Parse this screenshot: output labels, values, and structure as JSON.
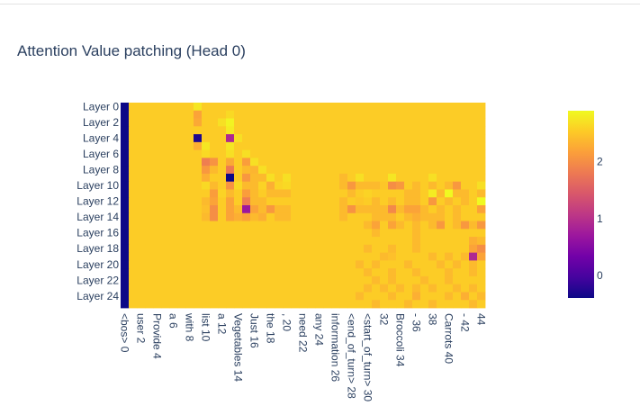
{
  "chart_data": {
    "type": "heatmap",
    "title": "Attention Value patching (Head 0)",
    "xlabel": "",
    "ylabel": "",
    "y_categories": [
      "Layer 0",
      "Layer 1",
      "Layer 2",
      "Layer 3",
      "Layer 4",
      "Layer 5",
      "Layer 6",
      "Layer 7",
      "Layer 8",
      "Layer 9",
      "Layer 10",
      "Layer 11",
      "Layer 12",
      "Layer 13",
      "Layer 14",
      "Layer 15",
      "Layer 16",
      "Layer 17",
      "Layer 18",
      "Layer 19",
      "Layer 20",
      "Layer 21",
      "Layer 22",
      "Layer 23",
      "Layer 24",
      "Layer 25"
    ],
    "y_tick_labels": [
      "Layer 0",
      "Layer 2",
      "Layer 4",
      "Layer 6",
      "Layer 8",
      "Layer 10",
      "Layer 12",
      "Layer 14",
      "Layer 16",
      "Layer 18",
      "Layer 20",
      "Layer 22",
      "Layer 24"
    ],
    "x_tick_labels": [
      "<bos> 0",
      "user 2",
      "Provide 4",
      "a 6",
      "with 8",
      "list 10",
      "a 12",
      "Vegetables 14",
      "Just 16",
      "the 18",
      ", 20",
      "need 22",
      "any 24",
      "information 26",
      "<end_of_turn> 28",
      "<start_of_turn> 30",
      "32",
      "Broccoli 34",
      "- 36",
      "38",
      "Carrots 40",
      "- 42",
      "44"
    ],
    "n_positions": 45,
    "colorscale": [
      "#0d0887",
      "#46039f",
      "#7201a8",
      "#9c179e",
      "#bd3786",
      "#d8576b",
      "#ed7953",
      "#fb9f3a",
      "#fdca26",
      "#f0f921"
    ],
    "zmin": -0.4,
    "zmax": 2.9,
    "colorbar_ticks": [
      0,
      1,
      2
    ],
    "baseline_value": 2.55,
    "column0_value": -0.4,
    "cells": [
      {
        "layer": 0,
        "pos": 9,
        "v": 2.75
      },
      {
        "layer": 1,
        "pos": 9,
        "v": 2.2
      },
      {
        "layer": 1,
        "pos": 13,
        "v": 2.65
      },
      {
        "layer": 2,
        "pos": 9,
        "v": 2.25
      },
      {
        "layer": 2,
        "pos": 12,
        "v": 2.7
      },
      {
        "layer": 2,
        "pos": 13,
        "v": 2.85
      },
      {
        "layer": 3,
        "pos": 13,
        "v": 2.8
      },
      {
        "layer": 4,
        "pos": 9,
        "v": -0.3
      },
      {
        "layer": 4,
        "pos": 13,
        "v": 0.9
      },
      {
        "layer": 4,
        "pos": 14,
        "v": 2.7
      },
      {
        "layer": 5,
        "pos": 9,
        "v": 2.3
      },
      {
        "layer": 5,
        "pos": 10,
        "v": 2.75
      },
      {
        "layer": 5,
        "pos": 13,
        "v": 2.75
      },
      {
        "layer": 6,
        "pos": 10,
        "v": 2.65
      },
      {
        "layer": 6,
        "pos": 13,
        "v": 2.7
      },
      {
        "layer": 6,
        "pos": 15,
        "v": 2.7
      },
      {
        "layer": 7,
        "pos": 10,
        "v": 1.85
      },
      {
        "layer": 7,
        "pos": 11,
        "v": 2.05
      },
      {
        "layer": 7,
        "pos": 13,
        "v": 2.25
      },
      {
        "layer": 7,
        "pos": 15,
        "v": 2.15
      },
      {
        "layer": 7,
        "pos": 16,
        "v": 2.7
      },
      {
        "layer": 8,
        "pos": 10,
        "v": 2.1
      },
      {
        "layer": 8,
        "pos": 11,
        "v": 2.4
      },
      {
        "layer": 8,
        "pos": 13,
        "v": 1.8
      },
      {
        "layer": 8,
        "pos": 15,
        "v": 2.4
      },
      {
        "layer": 8,
        "pos": 16,
        "v": 2.35
      },
      {
        "layer": 8,
        "pos": 17,
        "v": 2.7
      },
      {
        "layer": 9,
        "pos": 10,
        "v": 2.3
      },
      {
        "layer": 9,
        "pos": 11,
        "v": 2.55
      },
      {
        "layer": 9,
        "pos": 13,
        "v": -0.4
      },
      {
        "layer": 9,
        "pos": 15,
        "v": 2.1
      },
      {
        "layer": 9,
        "pos": 16,
        "v": 2.4
      },
      {
        "layer": 9,
        "pos": 17,
        "v": 2.4
      },
      {
        "layer": 9,
        "pos": 18,
        "v": 2.7
      },
      {
        "layer": 9,
        "pos": 20,
        "v": 2.7
      },
      {
        "layer": 9,
        "pos": 27,
        "v": 2.4
      },
      {
        "layer": 9,
        "pos": 29,
        "v": 2.7
      },
      {
        "layer": 9,
        "pos": 33,
        "v": 2.75
      },
      {
        "layer": 9,
        "pos": 38,
        "v": 2.7
      },
      {
        "layer": 10,
        "pos": 10,
        "v": 2.65
      },
      {
        "layer": 10,
        "pos": 11,
        "v": 2.4
      },
      {
        "layer": 10,
        "pos": 13,
        "v": 2.05
      },
      {
        "layer": 10,
        "pos": 14,
        "v": 2.65
      },
      {
        "layer": 10,
        "pos": 15,
        "v": 2.4
      },
      {
        "layer": 10,
        "pos": 16,
        "v": 2.4
      },
      {
        "layer": 10,
        "pos": 17,
        "v": 2.6
      },
      {
        "layer": 10,
        "pos": 18,
        "v": 2.3
      },
      {
        "layer": 10,
        "pos": 19,
        "v": 2.6
      },
      {
        "layer": 10,
        "pos": 20,
        "v": 2.65
      },
      {
        "layer": 10,
        "pos": 27,
        "v": 2.4
      },
      {
        "layer": 10,
        "pos": 28,
        "v": 2.1
      },
      {
        "layer": 10,
        "pos": 29,
        "v": 2.4
      },
      {
        "layer": 10,
        "pos": 30,
        "v": 2.4
      },
      {
        "layer": 10,
        "pos": 31,
        "v": 2.4
      },
      {
        "layer": 10,
        "pos": 32,
        "v": 2.5
      },
      {
        "layer": 10,
        "pos": 33,
        "v": 2.0
      },
      {
        "layer": 10,
        "pos": 34,
        "v": 2.1
      },
      {
        "layer": 10,
        "pos": 36,
        "v": 2.4
      },
      {
        "layer": 10,
        "pos": 38,
        "v": 2.4
      },
      {
        "layer": 10,
        "pos": 40,
        "v": 2.4
      },
      {
        "layer": 10,
        "pos": 41,
        "v": 2.1
      },
      {
        "layer": 10,
        "pos": 44,
        "v": 2.7
      },
      {
        "layer": 11,
        "pos": 11,
        "v": 2.15
      },
      {
        "layer": 11,
        "pos": 12,
        "v": 2.6
      },
      {
        "layer": 11,
        "pos": 13,
        "v": 2.4
      },
      {
        "layer": 11,
        "pos": 15,
        "v": 2.15
      },
      {
        "layer": 11,
        "pos": 16,
        "v": 2.4
      },
      {
        "layer": 11,
        "pos": 18,
        "v": 2.4
      },
      {
        "layer": 11,
        "pos": 19,
        "v": 2.4
      },
      {
        "layer": 11,
        "pos": 20,
        "v": 2.4
      },
      {
        "layer": 11,
        "pos": 27,
        "v": 2.55
      },
      {
        "layer": 11,
        "pos": 28,
        "v": 2.4
      },
      {
        "layer": 11,
        "pos": 30,
        "v": 2.6
      },
      {
        "layer": 11,
        "pos": 35,
        "v": 2.4
      },
      {
        "layer": 11,
        "pos": 36,
        "v": 2.4
      },
      {
        "layer": 11,
        "pos": 38,
        "v": 2.8
      },
      {
        "layer": 11,
        "pos": 39,
        "v": 2.4
      },
      {
        "layer": 11,
        "pos": 40,
        "v": 2.9
      },
      {
        "layer": 11,
        "pos": 41,
        "v": 2.4
      },
      {
        "layer": 11,
        "pos": 42,
        "v": 2.4
      },
      {
        "layer": 11,
        "pos": 44,
        "v": 2.4
      },
      {
        "layer": 12,
        "pos": 10,
        "v": 2.4
      },
      {
        "layer": 12,
        "pos": 11,
        "v": 2.2
      },
      {
        "layer": 12,
        "pos": 13,
        "v": 2.2
      },
      {
        "layer": 12,
        "pos": 15,
        "v": 1.85
      },
      {
        "layer": 12,
        "pos": 16,
        "v": 2.4
      },
      {
        "layer": 12,
        "pos": 17,
        "v": 2.4
      },
      {
        "layer": 12,
        "pos": 27,
        "v": 2.4
      },
      {
        "layer": 12,
        "pos": 29,
        "v": 2.5
      },
      {
        "layer": 12,
        "pos": 31,
        "v": 2.4
      },
      {
        "layer": 12,
        "pos": 33,
        "v": 2.4
      },
      {
        "layer": 12,
        "pos": 35,
        "v": 2.4
      },
      {
        "layer": 12,
        "pos": 36,
        "v": 2.4
      },
      {
        "layer": 12,
        "pos": 38,
        "v": 2.1
      },
      {
        "layer": 12,
        "pos": 40,
        "v": 2.4
      },
      {
        "layer": 12,
        "pos": 42,
        "v": 2.4
      },
      {
        "layer": 12,
        "pos": 44,
        "v": 2.9
      },
      {
        "layer": 13,
        "pos": 10,
        "v": 2.45
      },
      {
        "layer": 13,
        "pos": 11,
        "v": 2.0
      },
      {
        "layer": 13,
        "pos": 13,
        "v": 2.2
      },
      {
        "layer": 13,
        "pos": 14,
        "v": 2.4
      },
      {
        "layer": 13,
        "pos": 15,
        "v": 0.7
      },
      {
        "layer": 13,
        "pos": 16,
        "v": 2.2
      },
      {
        "layer": 13,
        "pos": 17,
        "v": 2.4
      },
      {
        "layer": 13,
        "pos": 18,
        "v": 2.1
      },
      {
        "layer": 13,
        "pos": 19,
        "v": 2.4
      },
      {
        "layer": 13,
        "pos": 20,
        "v": 2.4
      },
      {
        "layer": 13,
        "pos": 27,
        "v": 2.4
      },
      {
        "layer": 13,
        "pos": 28,
        "v": 2.05
      },
      {
        "layer": 13,
        "pos": 29,
        "v": 2.4
      },
      {
        "layer": 13,
        "pos": 30,
        "v": 2.4
      },
      {
        "layer": 13,
        "pos": 31,
        "v": 2.4
      },
      {
        "layer": 13,
        "pos": 32,
        "v": 2.4
      },
      {
        "layer": 13,
        "pos": 33,
        "v": 1.95
      },
      {
        "layer": 13,
        "pos": 34,
        "v": 2.4
      },
      {
        "layer": 13,
        "pos": 35,
        "v": 2.2
      },
      {
        "layer": 13,
        "pos": 36,
        "v": 2.2
      },
      {
        "layer": 13,
        "pos": 37,
        "v": 2.4
      },
      {
        "layer": 13,
        "pos": 39,
        "v": 2.4
      },
      {
        "layer": 13,
        "pos": 41,
        "v": 2.4
      },
      {
        "layer": 13,
        "pos": 44,
        "v": 2.2
      },
      {
        "layer": 14,
        "pos": 10,
        "v": 2.4
      },
      {
        "layer": 14,
        "pos": 11,
        "v": 2.0
      },
      {
        "layer": 14,
        "pos": 13,
        "v": 2.2
      },
      {
        "layer": 14,
        "pos": 14,
        "v": 2.3
      },
      {
        "layer": 14,
        "pos": 15,
        "v": 2.2
      },
      {
        "layer": 14,
        "pos": 16,
        "v": 2.4
      },
      {
        "layer": 14,
        "pos": 17,
        "v": 2.3
      },
      {
        "layer": 14,
        "pos": 19,
        "v": 2.4
      },
      {
        "layer": 14,
        "pos": 20,
        "v": 2.4
      },
      {
        "layer": 14,
        "pos": 27,
        "v": 2.4
      },
      {
        "layer": 14,
        "pos": 31,
        "v": 2.4
      },
      {
        "layer": 14,
        "pos": 32,
        "v": 2.4
      },
      {
        "layer": 14,
        "pos": 33,
        "v": 2.4
      },
      {
        "layer": 14,
        "pos": 35,
        "v": 2.4
      },
      {
        "layer": 14,
        "pos": 36,
        "v": 2.3
      },
      {
        "layer": 14,
        "pos": 37,
        "v": 2.4
      },
      {
        "layer": 14,
        "pos": 38,
        "v": 2.4
      },
      {
        "layer": 14,
        "pos": 39,
        "v": 2.4
      },
      {
        "layer": 14,
        "pos": 41,
        "v": 2.4
      },
      {
        "layer": 15,
        "pos": 30,
        "v": 2.4
      },
      {
        "layer": 15,
        "pos": 31,
        "v": 2.2
      },
      {
        "layer": 15,
        "pos": 33,
        "v": 2.2
      },
      {
        "layer": 15,
        "pos": 34,
        "v": 2.4
      },
      {
        "layer": 15,
        "pos": 36,
        "v": 2.4
      },
      {
        "layer": 15,
        "pos": 38,
        "v": 2.4
      },
      {
        "layer": 15,
        "pos": 39,
        "v": 2.1
      },
      {
        "layer": 15,
        "pos": 41,
        "v": 2.4
      },
      {
        "layer": 15,
        "pos": 42,
        "v": 2.1
      },
      {
        "layer": 15,
        "pos": 43,
        "v": 2.4
      },
      {
        "layer": 15,
        "pos": 44,
        "v": 2.1
      },
      {
        "layer": 16,
        "pos": 31,
        "v": 2.4
      },
      {
        "layer": 16,
        "pos": 36,
        "v": 2.4
      },
      {
        "layer": 17,
        "pos": 36,
        "v": 2.4
      },
      {
        "layer": 17,
        "pos": 43,
        "v": 2.3
      },
      {
        "layer": 17,
        "pos": 44,
        "v": 2.4
      },
      {
        "layer": 18,
        "pos": 30,
        "v": 2.4
      },
      {
        "layer": 18,
        "pos": 33,
        "v": 2.4
      },
      {
        "layer": 18,
        "pos": 36,
        "v": 2.4
      },
      {
        "layer": 18,
        "pos": 43,
        "v": 2.2
      },
      {
        "layer": 18,
        "pos": 44,
        "v": 2.0
      },
      {
        "layer": 19,
        "pos": 32,
        "v": 2.4
      },
      {
        "layer": 19,
        "pos": 33,
        "v": 2.45
      },
      {
        "layer": 19,
        "pos": 38,
        "v": 2.4
      },
      {
        "layer": 19,
        "pos": 40,
        "v": 2.4
      },
      {
        "layer": 19,
        "pos": 42,
        "v": 2.4
      },
      {
        "layer": 19,
        "pos": 43,
        "v": 0.9
      },
      {
        "layer": 19,
        "pos": 44,
        "v": 2.2
      },
      {
        "layer": 20,
        "pos": 29,
        "v": 2.4
      },
      {
        "layer": 20,
        "pos": 31,
        "v": 2.4
      },
      {
        "layer": 20,
        "pos": 35,
        "v": 2.4
      },
      {
        "layer": 20,
        "pos": 39,
        "v": 2.4
      },
      {
        "layer": 20,
        "pos": 41,
        "v": 2.4
      },
      {
        "layer": 20,
        "pos": 43,
        "v": 2.4
      },
      {
        "layer": 21,
        "pos": 30,
        "v": 2.4
      },
      {
        "layer": 21,
        "pos": 33,
        "v": 2.4
      },
      {
        "layer": 21,
        "pos": 36,
        "v": 2.4
      },
      {
        "layer": 21,
        "pos": 40,
        "v": 2.4
      },
      {
        "layer": 21,
        "pos": 43,
        "v": 2.4
      },
      {
        "layer": 22,
        "pos": 31,
        "v": 2.4
      },
      {
        "layer": 22,
        "pos": 33,
        "v": 2.4
      },
      {
        "layer": 22,
        "pos": 37,
        "v": 2.4
      },
      {
        "layer": 22,
        "pos": 40,
        "v": 2.4
      },
      {
        "layer": 23,
        "pos": 30,
        "v": 2.4
      },
      {
        "layer": 23,
        "pos": 32,
        "v": 2.4
      },
      {
        "layer": 23,
        "pos": 34,
        "v": 2.4
      },
      {
        "layer": 23,
        "pos": 36,
        "v": 2.4
      },
      {
        "layer": 23,
        "pos": 38,
        "v": 2.4
      },
      {
        "layer": 23,
        "pos": 41,
        "v": 2.4
      },
      {
        "layer": 23,
        "pos": 43,
        "v": 2.4
      },
      {
        "layer": 24,
        "pos": 29,
        "v": 2.4
      },
      {
        "layer": 24,
        "pos": 33,
        "v": 2.4
      },
      {
        "layer": 24,
        "pos": 36,
        "v": 2.3
      },
      {
        "layer": 24,
        "pos": 40,
        "v": 2.4
      },
      {
        "layer": 24,
        "pos": 42,
        "v": 2.3
      },
      {
        "layer": 24,
        "pos": 44,
        "v": 2.4
      },
      {
        "layer": 25,
        "pos": 31,
        "v": 2.4
      },
      {
        "layer": 25,
        "pos": 35,
        "v": 2.4
      },
      {
        "layer": 25,
        "pos": 38,
        "v": 2.4
      },
      {
        "layer": 25,
        "pos": 43,
        "v": 2.4
      }
    ]
  }
}
